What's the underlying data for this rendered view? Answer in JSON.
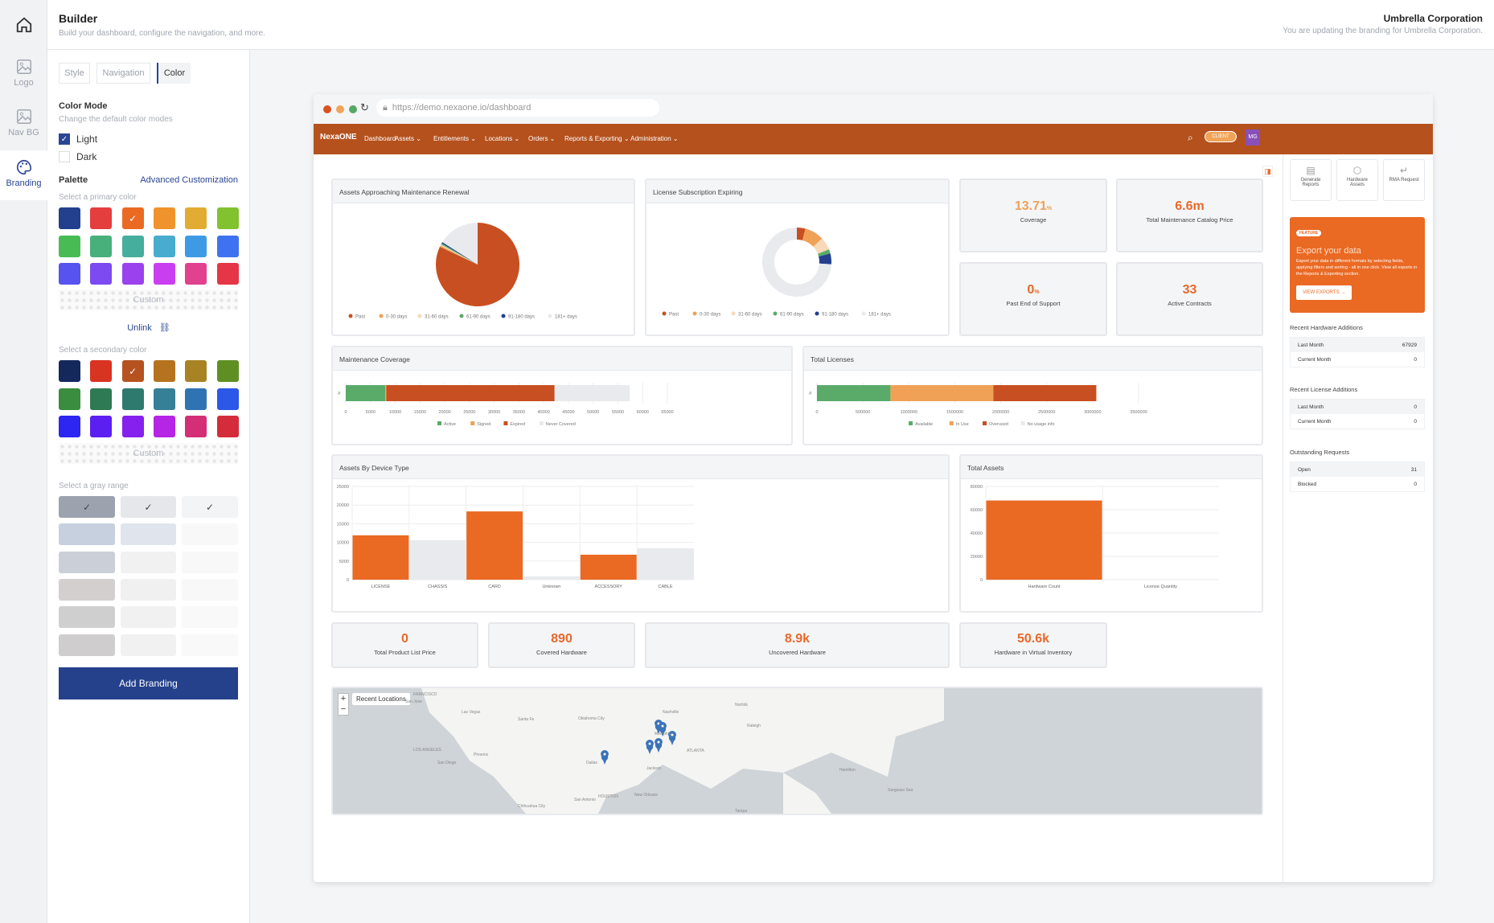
{
  "rail": [
    {
      "label": "",
      "icon": "home-icon"
    },
    {
      "label": "Logo",
      "icon": "image-icon"
    },
    {
      "label": "Nav BG",
      "icon": "image-icon"
    },
    {
      "label": "Branding",
      "icon": "palette-icon"
    }
  ],
  "header": {
    "title": "Builder",
    "subtitle": "Build your dashboard, configure the navigation, and more.",
    "org": "Umbrella Corporation",
    "org_subtitle": "You are updating the branding for Umbrella Corporation."
  },
  "panel": {
    "tabs": [
      "Style",
      "Navigation",
      "Color"
    ],
    "color_mode_title": "Color Mode",
    "color_mode_desc": "Change the default color modes",
    "light": "Light",
    "dark": "Dark",
    "palette": "Palette",
    "advanced": "Advanced Customization",
    "primary_label": "Select a primary color",
    "primary_colors": [
      "#23408e",
      "#e53e3e",
      "#eb6a23",
      "#f0932c",
      "#e2ab32",
      "#82c22f",
      "#48bb55",
      "#48b07a",
      "#45ae9c",
      "#48accf",
      "#3f9ae6",
      "#3f72f0",
      "#5653f0",
      "#7c4af0",
      "#9b42ee",
      "#c93ff0",
      "#e0428e",
      "#e43646"
    ],
    "primary_selected": 2,
    "custom": "Custom",
    "unlink": "Unlink",
    "secondary_label": "Select a secondary color",
    "secondary_colors": [
      "#14285c",
      "#d93322",
      "#b5521f",
      "#b5731f",
      "#a88324",
      "#5f8f22",
      "#3a8c3e",
      "#2e7a55",
      "#2e7a6e",
      "#357f97",
      "#2f74b2",
      "#2c58e8",
      "#2d25f2",
      "#5b1ff2",
      "#8620ee",
      "#b624e6",
      "#d42e76",
      "#d42c3a"
    ],
    "secondary_selected": 2,
    "gray_label": "Select a gray range",
    "gray_columns": [
      [
        "#9ca3af",
        "#c6d0de",
        "#cbd0d8",
        "#d3cfcf",
        "#cfcfcf",
        "#d0cdce"
      ],
      [
        "#e5e7eb",
        "#e0e5ed",
        "#f1f1f2",
        "#f0f0f0",
        "#f1f1f1",
        "#f1f1f1"
      ],
      [
        "#f3f4f6",
        "#f9f8f8",
        "#f9f8f8",
        "#f8f8f8",
        "#f9f9f9",
        "#f9f9f9"
      ]
    ],
    "add_branding": "Add Branding"
  },
  "browser": {
    "url": "https://demo.nexaone.io/dashboard"
  },
  "app": {
    "logo": "NexaONE",
    "nav": [
      "Dashboard",
      "Assets",
      "Entitlements",
      "Locations",
      "Orders",
      "Reports & Exporting",
      "Administration"
    ],
    "client_badge": "CLIENT",
    "avatar": "MG",
    "accent": "#b4511d"
  },
  "kpis": {
    "coverage": {
      "value": "13.71",
      "unit": "%",
      "label": "Coverage"
    },
    "catalog": {
      "value": "6.6m",
      "label": "Total Maintenance Catalog Price"
    },
    "past_eos": {
      "value": "0",
      "unit": "%",
      "label": "Past End of Support"
    },
    "contracts": {
      "value": "33",
      "label": "Active Contracts"
    },
    "list_price": {
      "value": "0",
      "label": "Total Product List Price"
    },
    "covered": {
      "value": "890",
      "label": "Covered Hardware"
    },
    "uncovered": {
      "value": "8.9k",
      "label": "Uncovered Hardware"
    },
    "virtual": {
      "value": "50.6k",
      "label": "Hardware in Virtual Inventory"
    }
  },
  "quick_actions": [
    {
      "label": "Generate Reports",
      "icon": "report-icon"
    },
    {
      "label": "Hardware Assets",
      "icon": "box-icon"
    },
    {
      "label": "RMA Request",
      "icon": "return-arrow-icon"
    }
  ],
  "feature": {
    "badge": "FEATURE",
    "title": "Export your data",
    "body": "Export your data in different formats by selecting fields, applying filters and sorting - all in one click. View all exports in the Reports & Exporting section.",
    "button": "VIEW EXPORTS →"
  },
  "side_lists": [
    {
      "title": "Recent Hardware Additions",
      "rows": [
        {
          "k": "Last Month",
          "v": "67929"
        },
        {
          "k": "Current Month",
          "v": "0"
        }
      ]
    },
    {
      "title": "Recent License Additions",
      "rows": [
        {
          "k": "Last Month",
          "v": "0"
        },
        {
          "k": "Current Month",
          "v": "0"
        }
      ]
    },
    {
      "title": "Outstanding Requests",
      "rows": [
        {
          "k": "Open",
          "v": "31"
        },
        {
          "k": "Blocked",
          "v": "0"
        }
      ]
    }
  ],
  "map": {
    "title": "Recent Locations",
    "zoom_in": "+",
    "zoom_out": "−",
    "cities": [
      "FRANCISCO",
      "San Jose",
      "Las Vegas",
      "Santa Fe",
      "Oklahoma City",
      "Nashville",
      "Norfolk",
      "Raleigh",
      "Memphis",
      "LOS ANGELES",
      "Phoenix",
      "ATLANTA",
      "San Diego",
      "Dallas",
      "Jackson",
      "San Antonio",
      "HOUSTON",
      "New Orleans",
      "Chihuahua City",
      "Hamilton",
      "Sargasso Sea",
      "Tampa"
    ]
  },
  "chart_data": [
    {
      "type": "pie",
      "title": "Assets Approaching Maintenance Renewal",
      "categories": [
        "Past",
        "0-30 days",
        "31-60 days",
        "61-90 days",
        "91-180 days",
        "181+ days"
      ],
      "values": [
        82,
        0.5,
        0.5,
        0.5,
        0.5,
        16
      ],
      "colors": [
        "#c84f21",
        "#f0a156",
        "#f8d9b8",
        "#5aab6a",
        "#233f8e",
        "#e8eaee"
      ]
    },
    {
      "type": "pie",
      "title": "License Subscription Expiring",
      "donut": true,
      "categories": [
        "Past",
        "0-30 days",
        "31-60 days",
        "61-90 days",
        "91-180 days",
        "181+ days"
      ],
      "values": [
        4,
        9,
        6,
        2,
        5,
        74
      ],
      "colors": [
        "#c84f21",
        "#f0a156",
        "#f8d9b8",
        "#5aab6a",
        "#233f8e",
        "#e8eaee"
      ]
    },
    {
      "type": "bar",
      "stacked": true,
      "horizontal": true,
      "title": "Maintenance Coverage",
      "categories": [
        "#"
      ],
      "series": [
        {
          "name": "Active",
          "values": [
            8000
          ],
          "color": "#5aab6a"
        },
        {
          "name": "Signed",
          "values": [
            200
          ],
          "color": "#f0a156"
        },
        {
          "name": "Expired",
          "values": [
            34000
          ],
          "color": "#c84f21"
        },
        {
          "name": "Never Covered",
          "values": [
            15200
          ],
          "color": "#e8eaee"
        }
      ],
      "ticks": [
        "0",
        "5000",
        "10000",
        "15000",
        "20000",
        "25000",
        "30000",
        "35000",
        "40000",
        "45000",
        "50000",
        "55000",
        "60000",
        "65000"
      ],
      "xlim": [
        0,
        65000
      ]
    },
    {
      "type": "bar",
      "stacked": true,
      "horizontal": true,
      "title": "Total Licenses",
      "categories": [
        "#"
      ],
      "series": [
        {
          "name": "Available",
          "values": [
            800000
          ],
          "color": "#5aab6a"
        },
        {
          "name": "In Use",
          "values": [
            1120000
          ],
          "color": "#f0a156"
        },
        {
          "name": "Overused",
          "values": [
            1120000
          ],
          "color": "#c84f21"
        },
        {
          "name": "No usage info",
          "values": [
            0
          ],
          "color": "#e8eaee"
        }
      ],
      "ticks": [
        "0",
        "500000",
        "1000000",
        "1500000",
        "2000000",
        "2500000",
        "3000000",
        "3500000"
      ],
      "xlim": [
        0,
        3500000
      ]
    },
    {
      "type": "bar",
      "title": "Assets By Device Type",
      "categories": [
        "LICENSE",
        "CHASSIS",
        "CARD",
        "Unknown",
        "ACCESSORY",
        "CABLE"
      ],
      "values": [
        11900,
        10600,
        18300,
        900,
        6700,
        8400
      ],
      "colors": [
        "#ea6923",
        "#e8eaee",
        "#ea6923",
        "#e8eaee",
        "#ea6923",
        "#e8eaee"
      ],
      "ticks": [
        "0",
        "5000",
        "10000",
        "15000",
        "20000",
        "25000"
      ],
      "ylim": [
        0,
        25000
      ]
    },
    {
      "type": "bar",
      "title": "Total Assets",
      "categories": [
        "Hardware Count",
        "License Quantity"
      ],
      "values": [
        67929,
        0
      ],
      "colors": [
        "#ea6923",
        "#e8eaee"
      ],
      "ticks": [
        "0",
        "20000",
        "40000",
        "60000",
        "80000"
      ],
      "ylim": [
        0,
        80000
      ]
    }
  ]
}
